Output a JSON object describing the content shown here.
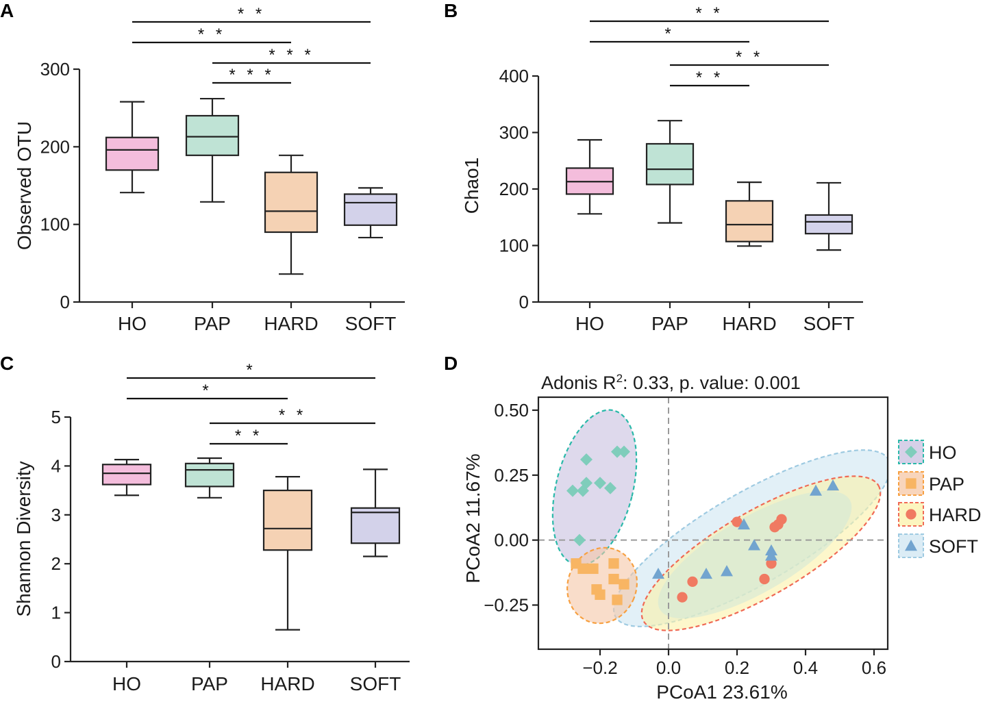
{
  "chart_data": [
    {
      "panel": "A",
      "type": "box",
      "ylabel": "Observed OTU",
      "ylim": [
        0,
        300
      ],
      "yticks": [
        0,
        100,
        200,
        300
      ],
      "categories": [
        "HO",
        "PAP",
        "HARD",
        "SOFT"
      ],
      "colors": [
        "#f4bddc",
        "#bfe3d5",
        "#f5d2b4",
        "#d3d2ea"
      ],
      "boxes": [
        {
          "min": 141,
          "q1": 170,
          "median": 196,
          "q3": 212,
          "max": 258
        },
        {
          "min": 129,
          "q1": 189,
          "median": 213,
          "q3": 240,
          "max": 262
        },
        {
          "min": 36,
          "q1": 90,
          "median": 117,
          "q3": 167,
          "max": 189
        },
        {
          "min": 83,
          "q1": 99,
          "median": 128,
          "q3": 139,
          "max": 147
        }
      ],
      "significance": [
        {
          "from": 0,
          "to": 3,
          "label": "* *"
        },
        {
          "from": 0,
          "to": 2,
          "label": "* *"
        },
        {
          "from": 1,
          "to": 3,
          "label": "* * *"
        },
        {
          "from": 1,
          "to": 2,
          "label": "* * *"
        }
      ]
    },
    {
      "panel": "B",
      "type": "box",
      "ylabel": "Chao1",
      "ylim": [
        0,
        400
      ],
      "yticks": [
        0,
        100,
        200,
        300,
        400
      ],
      "categories": [
        "HO",
        "PAP",
        "HARD",
        "SOFT"
      ],
      "colors": [
        "#f4bddc",
        "#bfe3d5",
        "#f5d2b4",
        "#d3d2ea"
      ],
      "boxes": [
        {
          "min": 156,
          "q1": 191,
          "median": 213,
          "q3": 237,
          "max": 287
        },
        {
          "min": 140,
          "q1": 208,
          "median": 235,
          "q3": 280,
          "max": 321
        },
        {
          "min": 99,
          "q1": 107,
          "median": 137,
          "q3": 179,
          "max": 212
        },
        {
          "min": 92,
          "q1": 121,
          "median": 142,
          "q3": 154,
          "max": 211
        }
      ],
      "significance": [
        {
          "from": 0,
          "to": 3,
          "label": "* *"
        },
        {
          "from": 0,
          "to": 2,
          "label": "*"
        },
        {
          "from": 1,
          "to": 3,
          "label": "* *"
        },
        {
          "from": 1,
          "to": 2,
          "label": "* *"
        }
      ]
    },
    {
      "panel": "C",
      "type": "box",
      "ylabel": "Shannon Diversity",
      "ylim": [
        0,
        5
      ],
      "yticks": [
        0,
        1,
        2,
        3,
        4,
        5
      ],
      "categories": [
        "HO",
        "PAP",
        "HARD",
        "SOFT"
      ],
      "colors": [
        "#f4bddc",
        "#bfe3d5",
        "#f5d2b4",
        "#d3d2ea"
      ],
      "boxes": [
        {
          "min": 3.4,
          "q1": 3.62,
          "median": 3.85,
          "q3": 4.03,
          "max": 4.13
        },
        {
          "min": 3.35,
          "q1": 3.58,
          "median": 3.92,
          "q3": 4.05,
          "max": 4.16
        },
        {
          "min": 0.65,
          "q1": 2.28,
          "median": 2.72,
          "q3": 3.5,
          "max": 3.78
        },
        {
          "min": 2.15,
          "q1": 2.42,
          "median": 3.05,
          "q3": 3.14,
          "max": 3.93
        }
      ],
      "significance": [
        {
          "from": 0,
          "to": 3,
          "label": "*"
        },
        {
          "from": 0,
          "to": 2,
          "label": "*"
        },
        {
          "from": 1,
          "to": 3,
          "label": "* *"
        },
        {
          "from": 1,
          "to": 2,
          "label": "* *"
        }
      ]
    },
    {
      "panel": "D",
      "type": "scatter",
      "title_prefix": "Adonis R",
      "title_sup": "2",
      "title_suffix": ": 0.33, p. value: 0.001",
      "xlabel": "PCoA1 23.61%",
      "ylabel": "PCoA2 11.67%",
      "xlim": [
        -0.38,
        0.64
      ],
      "ylim": [
        -0.42,
        0.55
      ],
      "xticks": [
        -0.2,
        0,
        0.2,
        0.4,
        0.6
      ],
      "xticklabels": [
        "−0.2",
        "0.0",
        "0.2",
        "0.4",
        "0.6"
      ],
      "yticks": [
        -0.25,
        0,
        0.25,
        0.5
      ],
      "yticklabels": [
        "−0.25",
        "0.00",
        "0.25",
        "0.50"
      ],
      "series": [
        {
          "name": "HO",
          "marker": "diamond",
          "color": "#7fcdbb",
          "edge": "#2ab9a9",
          "fill": "#c8c0e0",
          "points": [
            [
              -0.24,
              0.31
            ],
            [
              -0.15,
              0.34
            ],
            [
              -0.13,
              0.34
            ],
            [
              -0.28,
              0.19
            ],
            [
              -0.25,
              0.19
            ],
            [
              -0.24,
              0.22
            ],
            [
              -0.2,
              0.22
            ],
            [
              -0.17,
              0.2
            ],
            [
              -0.26,
              0.0
            ]
          ]
        },
        {
          "name": "PAP",
          "marker": "square",
          "color": "#f8b563",
          "edge": "#f7a041",
          "fill": "#f5c7a6",
          "points": [
            [
              -0.27,
              -0.09
            ],
            [
              -0.25,
              -0.11
            ],
            [
              -0.22,
              -0.11
            ],
            [
              -0.16,
              -0.09
            ],
            [
              -0.21,
              -0.19
            ],
            [
              -0.2,
              -0.21
            ],
            [
              -0.15,
              -0.23
            ],
            [
              -0.13,
              -0.17
            ],
            [
              -0.16,
              -0.15
            ]
          ]
        },
        {
          "name": "HARD",
          "marker": "circle",
          "color": "#f07a62",
          "edge": "#f06a55",
          "fill": "#fbf2a9",
          "points": [
            [
              0.2,
              0.07
            ],
            [
              0.31,
              0.05
            ],
            [
              0.32,
              0.06
            ],
            [
              0.33,
              0.08
            ],
            [
              0.3,
              -0.09
            ],
            [
              0.28,
              -0.15
            ],
            [
              0.07,
              -0.16
            ],
            [
              0.04,
              -0.22
            ]
          ]
        },
        {
          "name": "SOFT",
          "marker": "triangle",
          "color": "#72a4cf",
          "edge": "#9ecae1",
          "fill": "#cfe6f1",
          "points": [
            [
              0.43,
              0.19
            ],
            [
              0.48,
              0.21
            ],
            [
              0.22,
              0.06
            ],
            [
              0.3,
              -0.04
            ],
            [
              0.3,
              -0.06
            ],
            [
              0.25,
              -0.02
            ],
            [
              0.17,
              -0.12
            ],
            [
              0.11,
              -0.13
            ],
            [
              -0.03,
              -0.13
            ]
          ]
        }
      ]
    }
  ]
}
